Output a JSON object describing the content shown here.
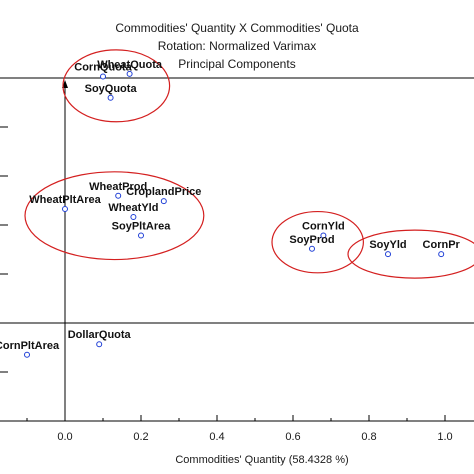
{
  "chart_data": {
    "type": "scatter",
    "title": [
      "Commodities' Quantity X Commodities' Quota",
      "Rotation: Normalized Varimax",
      "Principal Components"
    ],
    "xlabel": "Commodities' Quantity (58.4328 %)",
    "ylabel": "",
    "xlim": [
      -0.17,
      1.05
    ],
    "x_ticks": [
      "0.0",
      "0.2",
      "0.4",
      "0.6",
      "0.8",
      "1.0"
    ],
    "x_tick_values": [
      0.0,
      0.2,
      0.4,
      0.6,
      0.8,
      1.0
    ],
    "y_gridlines": 7,
    "grid": false,
    "points": [
      {
        "label": "CornQuota",
        "x": 0.1,
        "y": 0.93
      },
      {
        "label": "WheatQuota",
        "x": 0.17,
        "y": 0.94
      },
      {
        "label": "SoyQuota",
        "x": 0.12,
        "y": 0.85
      },
      {
        "label": "WheatProd",
        "x": 0.14,
        "y": 0.48
      },
      {
        "label": "CroplandPrice",
        "x": 0.26,
        "y": 0.46
      },
      {
        "label": "WheatPltArea",
        "x": 0.0,
        "y": 0.43
      },
      {
        "label": "WheatYld",
        "x": 0.18,
        "y": 0.4
      },
      {
        "label": "SoyPltArea",
        "x": 0.2,
        "y": 0.33
      },
      {
        "label": "CornYld",
        "x": 0.68,
        "y": 0.33
      },
      {
        "label": "SoyProd",
        "x": 0.65,
        "y": 0.28
      },
      {
        "label": "SoyYld",
        "x": 0.85,
        "y": 0.26
      },
      {
        "label": "CornPr",
        "x": 0.99,
        "y": 0.26
      },
      {
        "label": "CornPltArea",
        "x": -0.1,
        "y": -0.12
      },
      {
        "label": "DollarQuota",
        "x": 0.09,
        "y": -0.08
      }
    ],
    "clusters": [
      [
        "CornQuota",
        "WheatQuota",
        "SoyQuota"
      ],
      [
        "WheatProd",
        "CroplandPrice",
        "WheatPltArea",
        "WheatYld",
        "SoyPltArea"
      ],
      [
        "CornYld",
        "SoyProd"
      ],
      [
        "SoyYld",
        "CornPr"
      ]
    ],
    "colors": {
      "point": "#1f3fd6",
      "ellipse": "#d42020",
      "axis": "#000000"
    }
  }
}
